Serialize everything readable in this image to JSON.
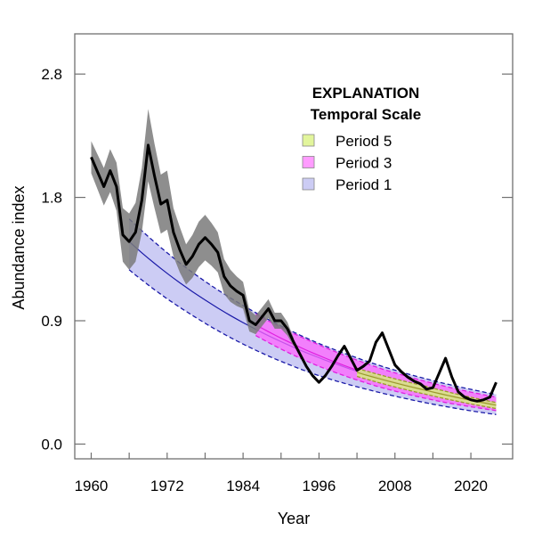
{
  "chart_data": {
    "type": "line",
    "title": "",
    "xlabel": "Year",
    "ylabel": "Abundance index",
    "xlim": [
      1957.4,
      2026.6
    ],
    "ylim": [
      -0.11,
      3.06
    ],
    "grid": false,
    "x_ticks": [
      1960,
      1966,
      1972,
      1978,
      1984,
      1990,
      1996,
      2002,
      2008,
      2014,
      2020
    ],
    "x_tick_labels": [
      {
        "value": 1960,
        "label": "1960"
      },
      {
        "value": 1972,
        "label": "1972"
      },
      {
        "value": 1984,
        "label": "1984"
      },
      {
        "value": 1996,
        "label": "1996"
      },
      {
        "value": 2008,
        "label": "2008"
      },
      {
        "value": 2020,
        "label": "2020"
      }
    ],
    "y_ticks": [
      {
        "value": 0.0,
        "label": "0.0"
      },
      {
        "value": 0.92,
        "label": "0.9"
      },
      {
        "value": 1.84,
        "label": "1.8"
      },
      {
        "value": 2.76,
        "label": "2.8"
      }
    ],
    "legend": {
      "placement": "top-right",
      "title": "EXPLANATION",
      "subtitle": "Temporal Scale",
      "entries": [
        {
          "label": "Period 5",
          "color": "#e2f59c"
        },
        {
          "label": "Period 3",
          "color": "#ff9cff"
        },
        {
          "label": "Period 1",
          "color": "#ccccf4"
        }
      ]
    },
    "abundance": {
      "color": "#000000",
      "band_color": "#7a7a7a",
      "x": [
        1960,
        1961,
        1962,
        1963,
        1964,
        1965,
        1966,
        1967,
        1968,
        1969,
        1970,
        1971,
        1972,
        1973,
        1974,
        1975,
        1976,
        1977,
        1978,
        1979,
        1980,
        1981,
        1982,
        1983,
        1984,
        1985,
        1986,
        1987,
        1988,
        1989,
        1990,
        1991,
        1992,
        1993,
        1994,
        1995,
        1996,
        1997,
        1998,
        1999,
        2000,
        2001,
        2002,
        2003,
        2004,
        2005,
        2006,
        2007,
        2008,
        2009,
        2010,
        2011,
        2012,
        2013,
        2014,
        2015,
        2016,
        2017,
        2018,
        2019,
        2020,
        2021,
        2022,
        2023,
        2024
      ],
      "y": [
        2.14,
        2.03,
        1.92,
        2.04,
        1.92,
        1.56,
        1.51,
        1.58,
        1.82,
        2.23,
        2.0,
        1.79,
        1.82,
        1.58,
        1.45,
        1.34,
        1.4,
        1.49,
        1.54,
        1.49,
        1.43,
        1.25,
        1.18,
        1.14,
        1.11,
        0.92,
        0.89,
        0.95,
        1.01,
        0.92,
        0.92,
        0.86,
        0.76,
        0.67,
        0.58,
        0.51,
        0.46,
        0.51,
        0.58,
        0.66,
        0.73,
        0.64,
        0.55,
        0.58,
        0.62,
        0.76,
        0.83,
        0.71,
        0.59,
        0.54,
        0.5,
        0.47,
        0.45,
        0.41,
        0.42,
        0.53,
        0.64,
        0.5,
        0.39,
        0.35,
        0.33,
        0.32,
        0.33,
        0.35,
        0.46
      ],
      "band_x": [
        1960,
        1961,
        1962,
        1963,
        1964,
        1965,
        1966,
        1967,
        1968,
        1969,
        1970,
        1971,
        1972,
        1973,
        1974,
        1975,
        1976,
        1977,
        1978,
        1979,
        1980,
        1981,
        1982,
        1983,
        1984,
        1985,
        1986,
        1987,
        1988,
        1989,
        1990,
        1991,
        1992
      ],
      "band_lower": [
        2.02,
        1.9,
        1.78,
        1.88,
        1.74,
        1.36,
        1.3,
        1.36,
        1.58,
        1.96,
        1.76,
        1.57,
        1.6,
        1.4,
        1.28,
        1.19,
        1.24,
        1.32,
        1.37,
        1.33,
        1.28,
        1.12,
        1.06,
        1.03,
        1.01,
        0.84,
        0.82,
        0.88,
        0.94,
        0.86,
        0.86,
        0.81,
        0.73
      ],
      "band_upper": [
        2.26,
        2.16,
        2.06,
        2.2,
        2.1,
        1.76,
        1.72,
        1.8,
        2.06,
        2.5,
        2.24,
        2.01,
        2.04,
        1.76,
        1.62,
        1.49,
        1.56,
        1.66,
        1.71,
        1.65,
        1.58,
        1.38,
        1.3,
        1.25,
        1.21,
        1.0,
        0.96,
        1.02,
        1.08,
        0.98,
        0.98,
        0.91,
        0.79
      ]
    },
    "trends": [
      {
        "label": "Period 1",
        "fill": "#ccccf4",
        "line": "#1a1aa8",
        "x": [
          1966,
          1976,
          1986,
          1996,
          2006,
          2016,
          2024
        ],
        "center": [
          1.51,
          1.137,
          0.856,
          0.644,
          0.485,
          0.365,
          0.29
        ],
        "lower": [
          1.3,
          0.96,
          0.7,
          0.51,
          0.38,
          0.28,
          0.22
        ],
        "upper": [
          1.68,
          1.28,
          0.98,
          0.75,
          0.58,
          0.45,
          0.37
        ]
      },
      {
        "label": "Period 3",
        "fill": "#ff66ff",
        "line": "#e020e0",
        "x": [
          1986,
          1996,
          2006,
          2016,
          2024
        ],
        "center": [
          0.89,
          0.66,
          0.49,
          0.37,
          0.3
        ],
        "lower": [
          0.81,
          0.58,
          0.42,
          0.31,
          0.25
        ],
        "upper": [
          0.97,
          0.74,
          0.56,
          0.43,
          0.35
        ]
      },
      {
        "label": "Period 5",
        "fill": "#d6f07c",
        "line": "#9a9a2c",
        "x": [
          2002,
          2013,
          2024
        ],
        "center": [
          0.535,
          0.4,
          0.29
        ],
        "lower": [
          0.505,
          0.37,
          0.265
        ],
        "upper": [
          0.565,
          0.43,
          0.31
        ]
      }
    ]
  }
}
